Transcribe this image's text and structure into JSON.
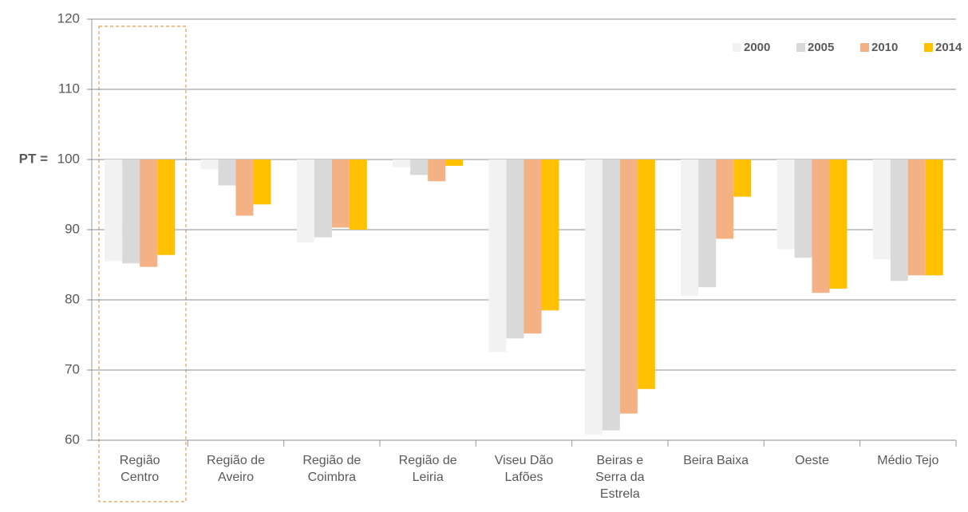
{
  "chart_data": {
    "type": "bar",
    "categories": [
      "Região Centro",
      "Região de Aveiro",
      "Região de Coimbra",
      "Região de Leiria",
      "Viseu Dão Lafões",
      "Beiras e Serra da Estrela",
      "Beira Baixa",
      "Oeste",
      "Médio Tejo"
    ],
    "series": [
      {
        "name": "2000",
        "color": "#f2f2f2",
        "values": [
          85.5,
          98.6,
          88.2,
          98.9,
          72.6,
          60.8,
          80.6,
          87.2,
          85.8
        ]
      },
      {
        "name": "2005",
        "color": "#d9d9d9",
        "values": [
          85.2,
          96.3,
          88.9,
          97.8,
          74.5,
          61.4,
          81.8,
          86.0,
          82.7
        ]
      },
      {
        "name": "2010",
        "color": "#f4b183",
        "values": [
          84.7,
          92.0,
          90.3,
          96.9,
          75.2,
          63.8,
          88.7,
          81.0,
          83.5
        ]
      },
      {
        "name": "2014",
        "color": "#ffc000",
        "values": [
          86.4,
          93.6,
          90.0,
          99.1,
          78.5,
          67.3,
          94.7,
          81.6,
          83.5
        ]
      }
    ],
    "bar_base": 100,
    "baseline_label": "PT =",
    "ylim": [
      60,
      120
    ],
    "yticks": [
      60,
      70,
      80,
      90,
      100,
      110,
      120
    ],
    "grid": true,
    "legend": "top-right"
  }
}
